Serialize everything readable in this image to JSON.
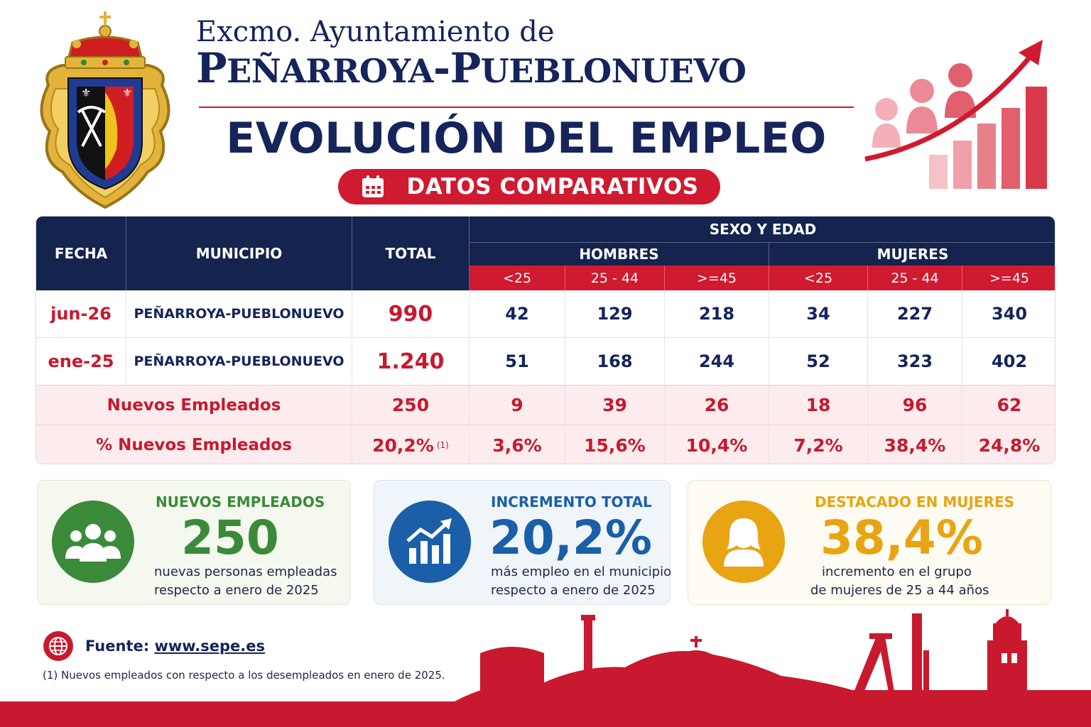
{
  "header": {
    "line1": "Excmo. Ayuntamiento de",
    "line2_cap1": "P",
    "line2_sc1": "EÑARROYA",
    "line2_dash": "-",
    "line2_cap2": "P",
    "line2_sc2": "UEBLONUEVO",
    "title": "EVOLUCIÓN DEL EMPLEO",
    "pill_label": "DATOS COMPARATIVOS"
  },
  "table": {
    "headers": {
      "fecha": "FECHA",
      "municipio": "MUNICIPIO",
      "total": "TOTAL",
      "group": "SEXO Y EDAD",
      "hombres": "HOMBRES",
      "mujeres": "MUJERES",
      "ages": [
        "<25",
        "25 - 44",
        ">=45",
        "<25",
        "25 - 44",
        ">=45"
      ]
    },
    "rows": [
      {
        "fecha": "jun-26",
        "municipio": "PEÑARROYA-PUEBLONUEVO",
        "total": "990",
        "values": [
          "42",
          "129",
          "218",
          "34",
          "227",
          "340"
        ]
      },
      {
        "fecha": "ene-25",
        "municipio": "PEÑARROYA-PUEBLONUEVO",
        "total": "1.240",
        "values": [
          "51",
          "168",
          "244",
          "52",
          "323",
          "402"
        ]
      }
    ],
    "nuevos": {
      "label": "Nuevos Empleados",
      "total": "250",
      "values": [
        "9",
        "39",
        "26",
        "18",
        "96",
        "62"
      ]
    },
    "porcentaje": {
      "label": "% Nuevos Empleados",
      "total": "20,2%",
      "note_mark": "(1)",
      "values": [
        "3,6%",
        "15,6%",
        "10,4%",
        "7,2%",
        "38,4%",
        "24,8%"
      ]
    }
  },
  "cards": [
    {
      "title": "NUEVOS EMPLEADOS",
      "value": "250",
      "desc1": "nuevas personas empleadas",
      "desc2": "respecto a enero de 2025",
      "color": "#3a8a3a",
      "icon": "group-icon"
    },
    {
      "title": "INCREMENTO TOTAL",
      "value": "20,2%",
      "desc1": "más empleo en el municipio",
      "desc2": "respecto a enero de 2025",
      "color": "#1a5fa8",
      "icon": "trend-chart-icon"
    },
    {
      "title": "DESTACADO EN MUJERES",
      "value": "38,4%",
      "desc1": "incremento en el grupo",
      "desc2": "de mujeres de 25 a 44 años",
      "color": "#e8a412",
      "icon": "woman-icon"
    }
  ],
  "footer": {
    "fuente_label": "Fuente:",
    "fuente_link": "www.sepe.es",
    "note": "(1) Nuevos empleados con respecto a los desempleados en enero de 2025."
  },
  "colors": {
    "navy": "#15234f",
    "red": "#d01a30",
    "pink": "#fdecee"
  }
}
